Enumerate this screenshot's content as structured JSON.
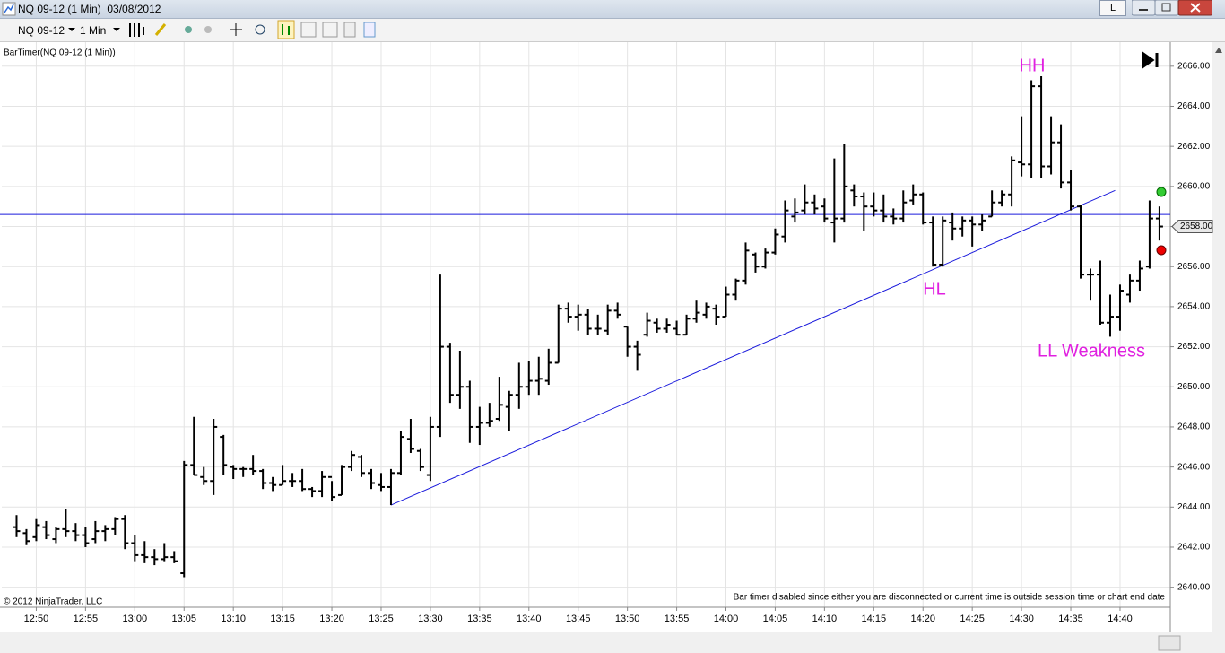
{
  "window": {
    "title": "NQ 09-12 (1 Min)  03/08/2012",
    "button": "L"
  },
  "toolbar": {
    "instrument": "NQ 09-12",
    "interval": "1 Min"
  },
  "chart_data": {
    "type": "ohlc",
    "indicator_label": "BarTimer(NQ 09-12 (1 Min))",
    "copyright": "© 2012 NinjaTrader, LLC",
    "status_message": "Bar timer disabled since either you are disconnected or current time is outside session time or chart end date",
    "annotations": [
      "HH",
      "HL",
      "LL Weakness"
    ],
    "color": "#000000",
    "grid": true,
    "xlim": [
      766.5,
      885.1
    ],
    "xticks": [
      {
        "value": 770,
        "label": "12:50"
      },
      {
        "value": 775,
        "label": "12:55"
      },
      {
        "value": 780,
        "label": "13:00"
      },
      {
        "value": 785,
        "label": "13:05"
      },
      {
        "value": 790,
        "label": "13:10"
      },
      {
        "value": 795,
        "label": "13:15"
      },
      {
        "value": 800,
        "label": "13:20"
      },
      {
        "value": 805,
        "label": "13:25"
      },
      {
        "value": 810,
        "label": "13:30"
      },
      {
        "value": 815,
        "label": "13:35"
      },
      {
        "value": 820,
        "label": "13:40"
      },
      {
        "value": 825,
        "label": "13:45"
      },
      {
        "value": 830,
        "label": "13:50"
      },
      {
        "value": 835,
        "label": "13:55"
      },
      {
        "value": 840,
        "label": "14:00"
      },
      {
        "value": 845,
        "label": "14:05"
      },
      {
        "value": 850,
        "label": "14:10"
      },
      {
        "value": 855,
        "label": "14:15"
      },
      {
        "value": 860,
        "label": "14:20"
      },
      {
        "value": 865,
        "label": "14:25"
      },
      {
        "value": 870,
        "label": "14:30"
      },
      {
        "value": 875,
        "label": "14:35"
      },
      {
        "value": 880,
        "label": "14:40"
      }
    ],
    "ylim": [
      2639,
      2667.2
    ],
    "yticks": [
      {
        "value": 2640,
        "label": "2640.00"
      },
      {
        "value": 2642,
        "label": "2642.00"
      },
      {
        "value": 2644,
        "label": "2644.00"
      },
      {
        "value": 2646,
        "label": "2646.00"
      },
      {
        "value": 2648,
        "label": "2648.00"
      },
      {
        "value": 2650,
        "label": "2650.00"
      },
      {
        "value": 2652,
        "label": "2652.00"
      },
      {
        "value": 2654,
        "label": "2654.00"
      },
      {
        "value": 2656,
        "label": "2656.00"
      },
      {
        "value": 2658,
        "label": "2658.00"
      },
      {
        "value": 2660,
        "label": "2660.00"
      },
      {
        "value": 2662,
        "label": "2662.00"
      },
      {
        "value": 2664,
        "label": "2664.00"
      },
      {
        "value": 2666,
        "label": "2666.00"
      }
    ],
    "last_price": {
      "value": 2658,
      "label": "2658.00"
    },
    "x": [
      768,
      769,
      770,
      771,
      772,
      773,
      774,
      775,
      776,
      777,
      778,
      779,
      780,
      781,
      782,
      783,
      784,
      785,
      786,
      787,
      788,
      789,
      790,
      791,
      792,
      793,
      794,
      795,
      796,
      797,
      798,
      799,
      800,
      801,
      802,
      803,
      804,
      805,
      806,
      807,
      808,
      809,
      810,
      811,
      812,
      813,
      814,
      815,
      816,
      817,
      818,
      819,
      820,
      821,
      822,
      823,
      824,
      825,
      826,
      827,
      828,
      829,
      830,
      831,
      832,
      833,
      834,
      835,
      836,
      837,
      838,
      839,
      840,
      841,
      842,
      843,
      844,
      845,
      846,
      847,
      848,
      849,
      850,
      851,
      852,
      853,
      854,
      855,
      856,
      857,
      858,
      859,
      860,
      861,
      862,
      863,
      864,
      865,
      866,
      867,
      868,
      869,
      870,
      871,
      872,
      873,
      874,
      875,
      876,
      877,
      878,
      879,
      880,
      881,
      882,
      883,
      884
    ],
    "open": [
      2643,
      2642.7,
      2642.5,
      2643,
      2642.4,
      2642.9,
      2642.8,
      2642.6,
      2642.4,
      2642.8,
      2642.9,
      2643.4,
      2642.2,
      2641.6,
      2641.5,
      2641.4,
      2641.5,
      2640.7,
      2646.1,
      2645.5,
      2645.3,
      2647.5,
      2646,
      2645.9,
      2645.9,
      2645.8,
      2645.2,
      2645.1,
      2645.3,
      2645.3,
      2644.9,
      2644.8,
      2645.5,
      2644.6,
      2646,
      2646.5,
      2645.7,
      2645.1,
      2645,
      2645.7,
      2647.4,
      2646.8,
      2645.6,
      2648,
      2652,
      2649.6,
      2650,
      2648,
      2648.2,
      2648.4,
      2649,
      2649.6,
      2650,
      2650.3,
      2650.3,
      2651.2,
      2653.9,
      2653.5,
      2653.6,
      2652.9,
      2652.8,
      2653.8,
      2653,
      2652,
      2652.6,
      2653.2,
      2652.9,
      2652.9,
      2652.6,
      2653.4,
      2653.6,
      2653.9,
      2653.5,
      2654.6,
      2655.3,
      2656.6,
      2656,
      2656.7,
      2657.5,
      2658.5,
      2658.8,
      2659.2,
      2659,
      2658.2,
      2658.4,
      2659.8,
      2659.5,
      2659,
      2658.8,
      2658.5,
      2658.4,
      2659.3,
      2659.6,
      2658.2,
      2656.1,
      2658.2,
      2657.9,
      2658.3,
      2658.1,
      2658.5,
      2659.2,
      2659.6,
      2661.2,
      2661.1,
      2665,
      2661,
      2662.2,
      2660.2,
      2659,
      2655.6,
      2655.6,
      2653.2,
      2653.5,
      2654.6,
      2655.3,
      2656,
      2658.4
    ],
    "high": [
      2643.6,
      2642.9,
      2643.4,
      2643.3,
      2643,
      2643.9,
      2643.2,
      2643,
      2643.3,
      2643.1,
      2643.5,
      2643.6,
      2642.6,
      2642.3,
      2641.9,
      2642.2,
      2641.8,
      2646.3,
      2648.5,
      2646,
      2648.4,
      2647.6,
      2646.1,
      2646,
      2646.6,
      2645.9,
      2645.5,
      2646.1,
      2645.7,
      2645.9,
      2645,
      2645.8,
      2645.3,
      2646.1,
      2646.8,
      2646.6,
      2645.9,
      2645.7,
      2645.9,
      2647.8,
      2648.4,
      2646.9,
      2648.5,
      2655.6,
      2652.2,
      2651.8,
      2650.3,
      2649,
      2649.2,
      2650.5,
      2649.8,
      2651.2,
      2651.3,
      2651.5,
      2651.9,
      2654.1,
      2654.2,
      2654.1,
      2653.9,
      2653.6,
      2654.1,
      2654.2,
      2653,
      2652.3,
      2653.7,
      2653.4,
      2653.4,
      2653.3,
      2653.6,
      2654.3,
      2654.2,
      2654.1,
      2655,
      2655.4,
      2657.2,
      2656.7,
      2656.9,
      2657.9,
      2659.3,
      2659.4,
      2660.1,
      2659.6,
      2659.4,
      2661.4,
      2662.1,
      2660.1,
      2659.7,
      2659.7,
      2659.6,
      2658.9,
      2659.8,
      2660.1,
      2659.7,
      2658.5,
      2658.5,
      2658.7,
      2658.5,
      2658.5,
      2658.6,
      2659.8,
      2659.8,
      2661.5,
      2663.5,
      2665.3,
      2665.5,
      2663.5,
      2663.1,
      2660.8,
      2659.1,
      2655.9,
      2656.3,
      2654.6,
      2655.1,
      2655.6,
      2656.3,
      2659.3,
      2659
    ],
    "low": [
      2642.5,
      2642.1,
      2642.3,
      2642.4,
      2642.2,
      2642.5,
      2642.3,
      2642,
      2642.2,
      2642.3,
      2642.6,
      2641.9,
      2641.3,
      2641.2,
      2641.1,
      2641.3,
      2641.2,
      2640.5,
      2645.6,
      2645.1,
      2644.6,
      2645.6,
      2645.4,
      2645.5,
      2645.6,
      2644.9,
      2644.8,
      2645.1,
      2645,
      2644.8,
      2644.5,
      2644.5,
      2644.3,
      2644.6,
      2645.8,
      2645.5,
      2644.9,
      2644.8,
      2644.1,
      2645.6,
      2646.7,
      2645.8,
      2645.3,
      2647.5,
      2649.2,
      2648.9,
      2647.2,
      2647.1,
      2648,
      2648.3,
      2647.8,
      2648.9,
      2649.6,
      2649.6,
      2650.1,
      2651.2,
      2653.2,
      2652.8,
      2652.6,
      2652.6,
      2652.6,
      2653.4,
      2651.5,
      2650.8,
      2652.5,
      2652.7,
      2652.7,
      2652.6,
      2652.6,
      2653.2,
      2653.4,
      2653.1,
      2653.5,
      2654.3,
      2655.1,
      2655.7,
      2655.9,
      2656.6,
      2657.2,
      2658.2,
      2658.6,
      2658.6,
      2658.2,
      2657.2,
      2658.2,
      2659,
      2657.8,
      2658.5,
      2658.2,
      2658.1,
      2658.2,
      2659.1,
      2658.1,
      2656,
      2656,
      2657.3,
      2657.5,
      2657,
      2657.8,
      2658.5,
      2659,
      2659,
      2660.5,
      2660.4,
      2660.4,
      2660.6,
      2659.9,
      2658.8,
      2655.4,
      2654.3,
      2653.1,
      2652.5,
      2652.8,
      2654.2,
      2654.8,
      2655.9,
      2657.3
    ],
    "close": [
      2642.8,
      2642.3,
      2643.1,
      2642.6,
      2642.9,
      2642.8,
      2642.6,
      2642.2,
      2642.8,
      2642.9,
      2643.4,
      2642.2,
      2641.6,
      2641.5,
      2641.4,
      2641.5,
      2641.3,
      2646.1,
      2645.6,
      2645.3,
      2648,
      2646.1,
      2645.9,
      2645.9,
      2645.8,
      2645.2,
      2645.1,
      2645.3,
      2645.3,
      2644.9,
      2644.8,
      2645.5,
      2644.5,
      2646,
      2646.6,
      2645.7,
      2645.2,
      2645,
      2645.7,
      2647.5,
      2646.9,
      2646,
      2648,
      2652,
      2649.6,
      2650,
      2648,
      2648.2,
      2648.3,
      2649.1,
      2649.6,
      2650,
      2650.3,
      2650.4,
      2651.2,
      2653.9,
      2653.5,
      2653.6,
      2652.9,
      2652.9,
      2653.8,
      2653.6,
      2652,
      2651.6,
      2653.3,
      2652.9,
      2653.1,
      2652.6,
      2653.4,
      2653.7,
      2654,
      2653.5,
      2654.6,
      2655.3,
      2656.8,
      2656,
      2656.7,
      2657.6,
      2658.8,
      2658.7,
      2659.2,
      2658.9,
      2658.4,
      2658.4,
      2660,
      2659.5,
      2659,
      2658.8,
      2658.5,
      2658.4,
      2659.2,
      2659.6,
      2658.2,
      2656.1,
      2658.3,
      2657.9,
      2658.3,
      2658.1,
      2658.3,
      2659.2,
      2659.6,
      2661.3,
      2661.1,
      2665,
      2661,
      2662.2,
      2660.2,
      2659,
      2655.6,
      2655.6,
      2653.2,
      2653.5,
      2654.8,
      2655.3,
      2655.9,
      2658.4,
      2658
    ],
    "trendline": {
      "color": "#1a1adc",
      "x": [
        806,
        879.5
      ],
      "y": [
        2644.1,
        2659.8
      ]
    },
    "hline": {
      "color": "#1a1adc",
      "y": 2658.6
    }
  }
}
